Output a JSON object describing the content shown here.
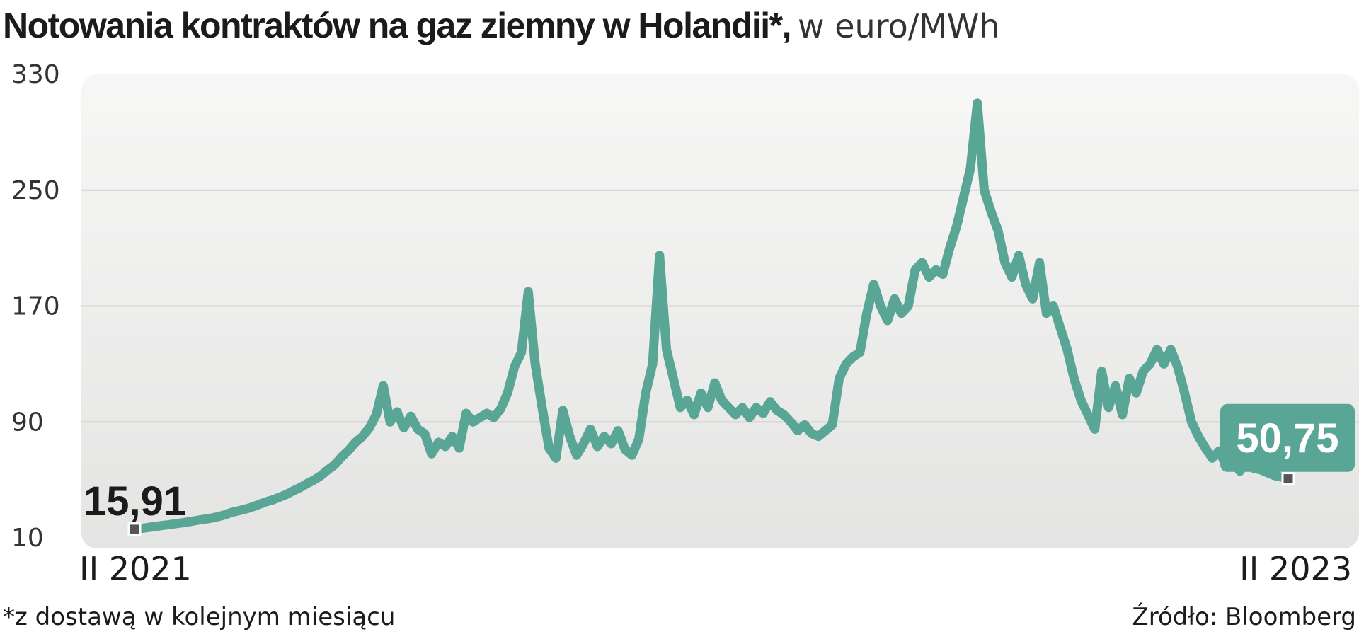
{
  "chart_data": {
    "type": "line",
    "title": "Notowania kontraktów na gaz ziemny w Holandii*,",
    "subtitle": "w euro/MWh",
    "xlabel": "",
    "ylabel": "",
    "ylim": [
      10,
      330
    ],
    "yticks": [
      "330",
      "250",
      "170",
      "90",
      "10"
    ],
    "ytick_values": [
      330,
      250,
      170,
      90,
      10
    ],
    "x_start_label": "II 2021",
    "x_end_label": "II 2023",
    "x_range": [
      "2021-02",
      "2023-02"
    ],
    "start_value_label": "15,91",
    "end_value_label": "50,75",
    "grid": true,
    "legend": "none",
    "line_color": "#5aa696",
    "series": [
      {
        "values": [
          15.91,
          16.5,
          17.2,
          17.8,
          18.5,
          19.1,
          19.8,
          20.4,
          21.2,
          22.0,
          22.8,
          23.5,
          24.5,
          25.8,
          27.5,
          28.6,
          29.8,
          31.2,
          33.0,
          34.8,
          36.2,
          38.1,
          40.0,
          42.5,
          44.8,
          47.5,
          50.0,
          53.0,
          57.0,
          60.5,
          66.0,
          70.5,
          76.0,
          80.0,
          86.0,
          95.0,
          115.0,
          90.0,
          97.0,
          86.0,
          94.0,
          85.0,
          82.0,
          68.0,
          76.0,
          73.0,
          80.0,
          72.0,
          96.0,
          90.0,
          93.0,
          96.0,
          93.0,
          99.0,
          110.0,
          128.0,
          138.0,
          180.0,
          130.0,
          100.0,
          72.0,
          65.0,
          98.0,
          80.0,
          67.0,
          75.0,
          85.0,
          73.0,
          80.0,
          75.0,
          84.0,
          71.0,
          67.0,
          78.0,
          110.0,
          130.0,
          205.0,
          140.0,
          120.0,
          100.0,
          105.0,
          95.0,
          110.0,
          100.0,
          117.0,
          105.0,
          100.0,
          95.0,
          100.0,
          93.0,
          100.0,
          96.0,
          104.0,
          98.0,
          95.0,
          90.0,
          84.0,
          88.0,
          82.0,
          80.0,
          84.0,
          88.0,
          120.0,
          130.0,
          135.0,
          138.0,
          165.0,
          185.0,
          170.0,
          160.0,
          175.0,
          165.0,
          170.0,
          195.0,
          200.0,
          190.0,
          195.0,
          192.0,
          210.0,
          225.0,
          245.0,
          265.0,
          310.0,
          250.0,
          235.0,
          222.0,
          200.0,
          190.0,
          205.0,
          185.0,
          175.0,
          200.0,
          165.0,
          170.0,
          155.0,
          140.0,
          120.0,
          105.0,
          95.0,
          85.0,
          125.0,
          100.0,
          115.0,
          95.0,
          120.0,
          110.0,
          125.0,
          130.0,
          140.0,
          130.0,
          140.0,
          128.0,
          110.0,
          90.0,
          80.0,
          72.0,
          65.0,
          70.0,
          60.0,
          63.0,
          56.0,
          63.0,
          58.0,
          57.0,
          55.0,
          53.0,
          52.0,
          50.75
        ]
      }
    ]
  },
  "footnote": "*z dostawą w kolejnym miesiącu",
  "source": "Źródło: Bloomberg"
}
